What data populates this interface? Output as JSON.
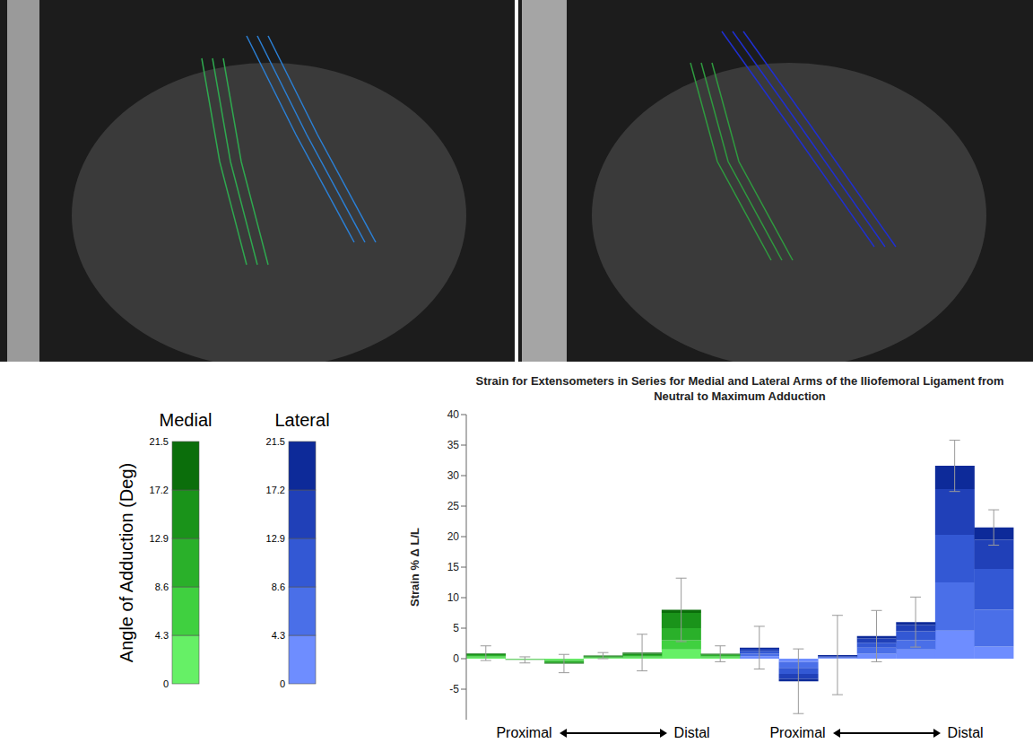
{
  "chart_data": {
    "type": "bar",
    "stacked": true,
    "title": "Strain for Extensometers in Series for Medial and Lateral Arms of the Iliofemoral Ligament from Neutral to Maximum Adduction",
    "y_label": "Strain % Δ L/L",
    "categories": [
      null,
      null,
      null,
      null,
      null,
      null,
      null,
      null,
      null,
      null,
      null,
      null,
      null,
      null
    ],
    "series": [
      {
        "values": [
          0.2,
          -0.05,
          -0.2,
          0.1,
          0.2,
          1.5,
          0.2,
          0.4,
          -0.5,
          0.1,
          0.8,
          1.5,
          4.6,
          2.0
        ],
        "colors": [
          "#66f066",
          "#66f066",
          "#66f066",
          "#66f066",
          "#66f066",
          "#66f066",
          "#66f066",
          "#6e8dff",
          "#6e8dff",
          "#6e8dff",
          "#6e8dff",
          "#6e8dff",
          "#6e8dff",
          "#6e8dff"
        ]
      },
      {
        "values": [
          0.2,
          -0.05,
          -0.2,
          0.1,
          0.2,
          1.5,
          0.2,
          0.4,
          -1.0,
          0.1,
          1.0,
          1.5,
          7.9,
          6.0
        ],
        "colors": [
          "#40d040",
          "#40d040",
          "#40d040",
          "#40d040",
          "#40d040",
          "#40d040",
          "#40d040",
          "#4a6fe8",
          "#4a6fe8",
          "#4a6fe8",
          "#4a6fe8",
          "#4a6fe8",
          "#4a6fe8",
          "#4a6fe8"
        ]
      },
      {
        "values": [
          0.2,
          -0.05,
          -0.2,
          0.1,
          0.2,
          2.0,
          0.2,
          0.4,
          -1.0,
          0.1,
          0.8,
          1.5,
          7.8,
          6.7
        ],
        "colors": [
          "#2ab02a",
          "#2ab02a",
          "#2ab02a",
          "#2ab02a",
          "#2ab02a",
          "#2ab02a",
          "#2ab02a",
          "#3358d4",
          "#3358d4",
          "#3358d4",
          "#3358d4",
          "#3358d4",
          "#3358d4",
          "#3358d4"
        ]
      },
      {
        "values": [
          0.2,
          -0.03,
          -0.1,
          0.1,
          0.2,
          2.5,
          0.1,
          0.4,
          -0.8,
          0.1,
          0.7,
          1.0,
          7.5,
          4.8
        ],
        "colors": [
          "#1a931a",
          "#1a931a",
          "#1a931a",
          "#1a931a",
          "#1a931a",
          "#1a931a",
          "#1a931a",
          "#2040b8",
          "#2040b8",
          "#2040b8",
          "#2040b8",
          "#2040b8",
          "#2040b8",
          "#2040b8"
        ]
      },
      {
        "values": [
          0.1,
          -0.02,
          -0.1,
          0.1,
          0.2,
          0.5,
          0.1,
          0.2,
          -0.4,
          0.2,
          0.4,
          0.5,
          3.8,
          2.0
        ],
        "colors": [
          "#0b6e0b",
          "#0b6e0b",
          "#0b6e0b",
          "#0b6e0b",
          "#0b6e0b",
          "#0b6e0b",
          "#0b6e0b",
          "#0d2a99",
          "#0d2a99",
          "#0d2a99",
          "#0d2a99",
          "#0d2a99",
          "#0d2a99",
          "#0d2a99"
        ]
      }
    ],
    "errors": [
      1.2,
      0.5,
      1.5,
      0.5,
      3.0,
      5.2,
      1.3,
      3.5,
      5.3,
      6.5,
      4.2,
      4.1,
      4.2,
      2.9
    ],
    "ylim": [
      -10,
      40
    ],
    "yticks": [
      -5,
      0,
      5,
      10,
      15,
      20,
      25,
      30,
      35,
      40
    ],
    "grid": false,
    "tick_labels": "y",
    "groups": [
      "Medial",
      "Lateral"
    ],
    "group_labels": [
      [
        "Proximal",
        "Distal"
      ],
      [
        "Proximal",
        "Distal"
      ]
    ],
    "colorbar": {
      "label": "Angle of Adduction (Deg)",
      "range": [
        0,
        21.5
      ],
      "ticks": [
        0,
        4.3,
        8.6,
        12.9,
        17.2,
        21.5
      ]
    }
  }
}
